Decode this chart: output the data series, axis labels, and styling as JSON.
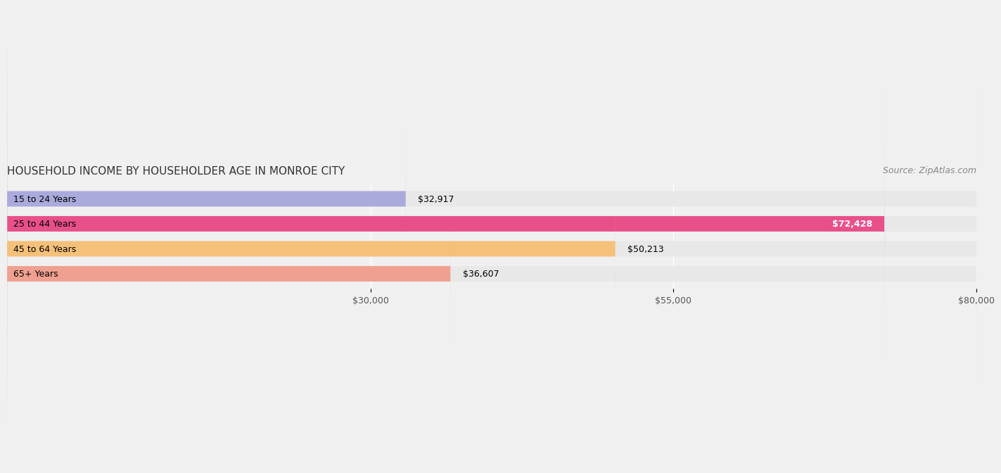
{
  "title": "HOUSEHOLD INCOME BY HOUSEHOLDER AGE IN MONROE CITY",
  "source": "Source: ZipAtlas.com",
  "categories": [
    "15 to 24 Years",
    "25 to 44 Years",
    "45 to 64 Years",
    "65+ Years"
  ],
  "values": [
    32917,
    72428,
    50213,
    36607
  ],
  "bar_colors": [
    "#aaaadd",
    "#e8508a",
    "#f5c07a",
    "#f0a090"
  ],
  "value_labels": [
    "$32,917",
    "$72,428",
    "$50,213",
    "$36,607"
  ],
  "xlim": [
    0,
    80000
  ],
  "xticks": [
    30000,
    55000,
    80000
  ],
  "xtick_labels": [
    "$30,000",
    "$55,000",
    "$80,000"
  ],
  "background_color": "#f0f0f0",
  "bar_bg_color": "#e8e8e8",
  "title_fontsize": 11,
  "source_fontsize": 9,
  "label_fontsize": 9,
  "tick_fontsize": 9
}
